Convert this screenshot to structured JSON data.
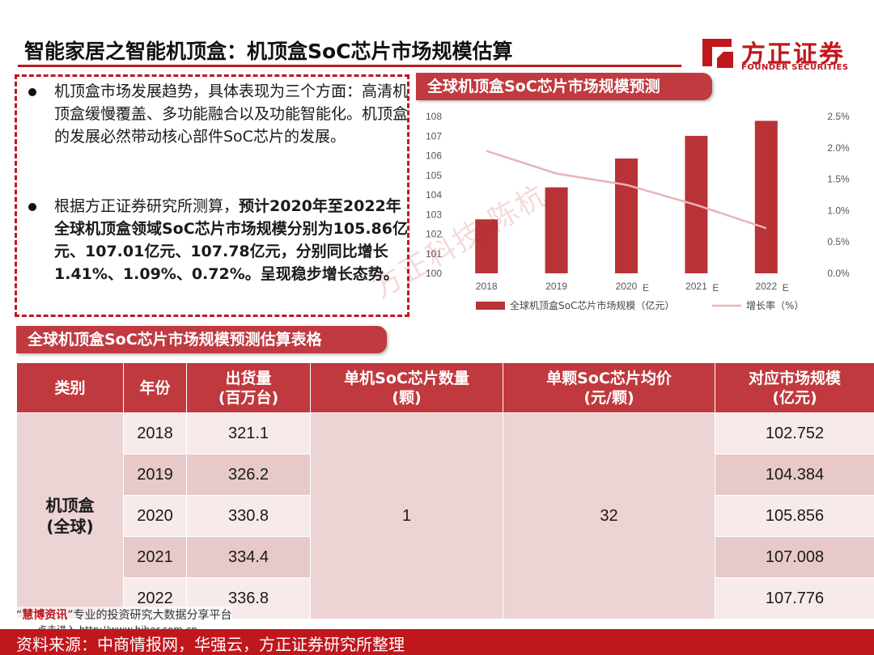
{
  "header": {
    "title": "智能家居之智能机顶盒：机顶盒SoC芯片市场规模估算",
    "logo_cn": "方正证券",
    "logo_en": "FOUNDER SECURITIES",
    "brand_color": "#c0171d"
  },
  "bullets": [
    {
      "text": "机顶盒市场发展趋势，具体表现为三个方面：高清机顶盒缓慢覆盖、多功能融合以及功能智能化。机顶盒的发展必然带动核心部件SoC芯片的发展。"
    },
    {
      "text_plain": "根据方正证券研究所测算，",
      "text_bold": "预计2020年至2022年全球机顶盒领域SoC芯片市场规模分别为105.86亿元、107.01亿元、107.78亿元，分别同比增长1.41%、1.09%、0.72%。呈现稳步增长态势。"
    }
  ],
  "chart_title": "全球机顶盒SoC芯片市场规模预测",
  "table_title": "全球机顶盒SoC芯片市场规模预测估算表格",
  "watermark": "方正科技·陈杭",
  "chart_data": {
    "type": "bar",
    "categories": [
      "2018",
      "2019",
      "2020",
      "2021",
      "2022"
    ],
    "category_suffix": [
      "",
      "",
      "E",
      "E",
      "E"
    ],
    "series": [
      {
        "name": "全球机顶盒SoC芯片市场规模（亿元）",
        "type": "bar",
        "axis": "left",
        "color": "#b83236",
        "values": [
          102.752,
          104.384,
          105.856,
          107.008,
          107.776
        ]
      },
      {
        "name": "增长率（%）",
        "type": "line",
        "axis": "right",
        "color": "#e8b4b6",
        "values": [
          1.95,
          1.59,
          1.41,
          1.09,
          0.72
        ]
      }
    ],
    "y_left": {
      "min": 100,
      "max": 108,
      "ticks": [
        "100",
        "101",
        "102",
        "103",
        "104",
        "105",
        "106",
        "107",
        "108"
      ]
    },
    "y_right": {
      "min": 0,
      "max": 2.5,
      "ticks": [
        "0.0%",
        "0.5%",
        "1.0%",
        "1.5%",
        "2.0%",
        "2.5%"
      ]
    },
    "legend_position": "bottom",
    "grid": false
  },
  "table": {
    "headers": [
      {
        "line1": "类别",
        "line2": ""
      },
      {
        "line1": "年份",
        "line2": ""
      },
      {
        "line1": "出货量",
        "line2": "(百万台)"
      },
      {
        "line1": "单机SoC芯片数量",
        "line2": "(颗)"
      },
      {
        "line1": "单颗SoC芯片均价",
        "line2": "(元/颗)"
      },
      {
        "line1": "对应市场规模",
        "line2": "(亿元)"
      }
    ],
    "category_line1": "机顶盒",
    "category_line2": "(全球)",
    "chips_per_unit": "1",
    "avg_price": "32",
    "rows": [
      {
        "year": "2018",
        "shipment": "321.1",
        "market": "102.752"
      },
      {
        "year": "2019",
        "shipment": "326.2",
        "market": "104.384"
      },
      {
        "year": "2020",
        "shipment": "330.8",
        "market": "105.856"
      },
      {
        "year": "2021",
        "shipment": "334.4",
        "market": "107.008"
      },
      {
        "year": "2022",
        "shipment": "336.8",
        "market": "107.776"
      }
    ]
  },
  "footer": {
    "source": "资料来源：中商情报网，华强云，方正证券研究所整理",
    "note_brand": "慧博资讯",
    "note_text": "专业的投资研究大数据分享平台",
    "note_link": "点击进入 http://www.hibor.com.cn"
  }
}
